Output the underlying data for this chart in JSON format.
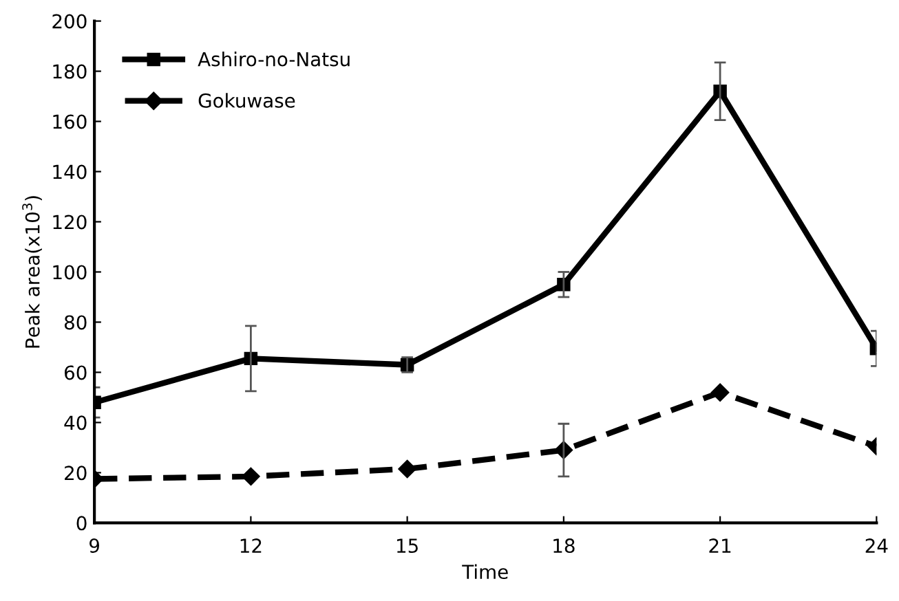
{
  "chart_data": {
    "type": "line",
    "xlabel": "Time",
    "ylabel": "Peak area(x10$^{3}$)",
    "x": [
      9,
      12,
      15,
      18,
      21,
      24
    ],
    "xlim": [
      9,
      24
    ],
    "xticks": [
      9,
      12,
      15,
      18,
      21,
      24
    ],
    "ylim": [
      0,
      200
    ],
    "yticks": [
      0,
      20,
      40,
      60,
      80,
      100,
      120,
      140,
      160,
      180,
      200
    ],
    "grid": false,
    "legend": "top left",
    "series": [
      {
        "name": "Ashiro-no-Natsu",
        "color": "#000000",
        "marker": "square",
        "line_style": "solid",
        "values": [
          48,
          65.5,
          63,
          95,
          172,
          69.5
        ],
        "errors": [
          6,
          13,
          3,
          5,
          11.5,
          7
        ]
      },
      {
        "name": "Gokuwase",
        "color": "#000000",
        "marker": "diamond",
        "line_style": "dashed",
        "values": [
          17.5,
          18.5,
          21.5,
          29,
          52,
          30.5
        ],
        "errors": [
          null,
          null,
          null,
          10.5,
          null,
          null
        ]
      }
    ]
  }
}
